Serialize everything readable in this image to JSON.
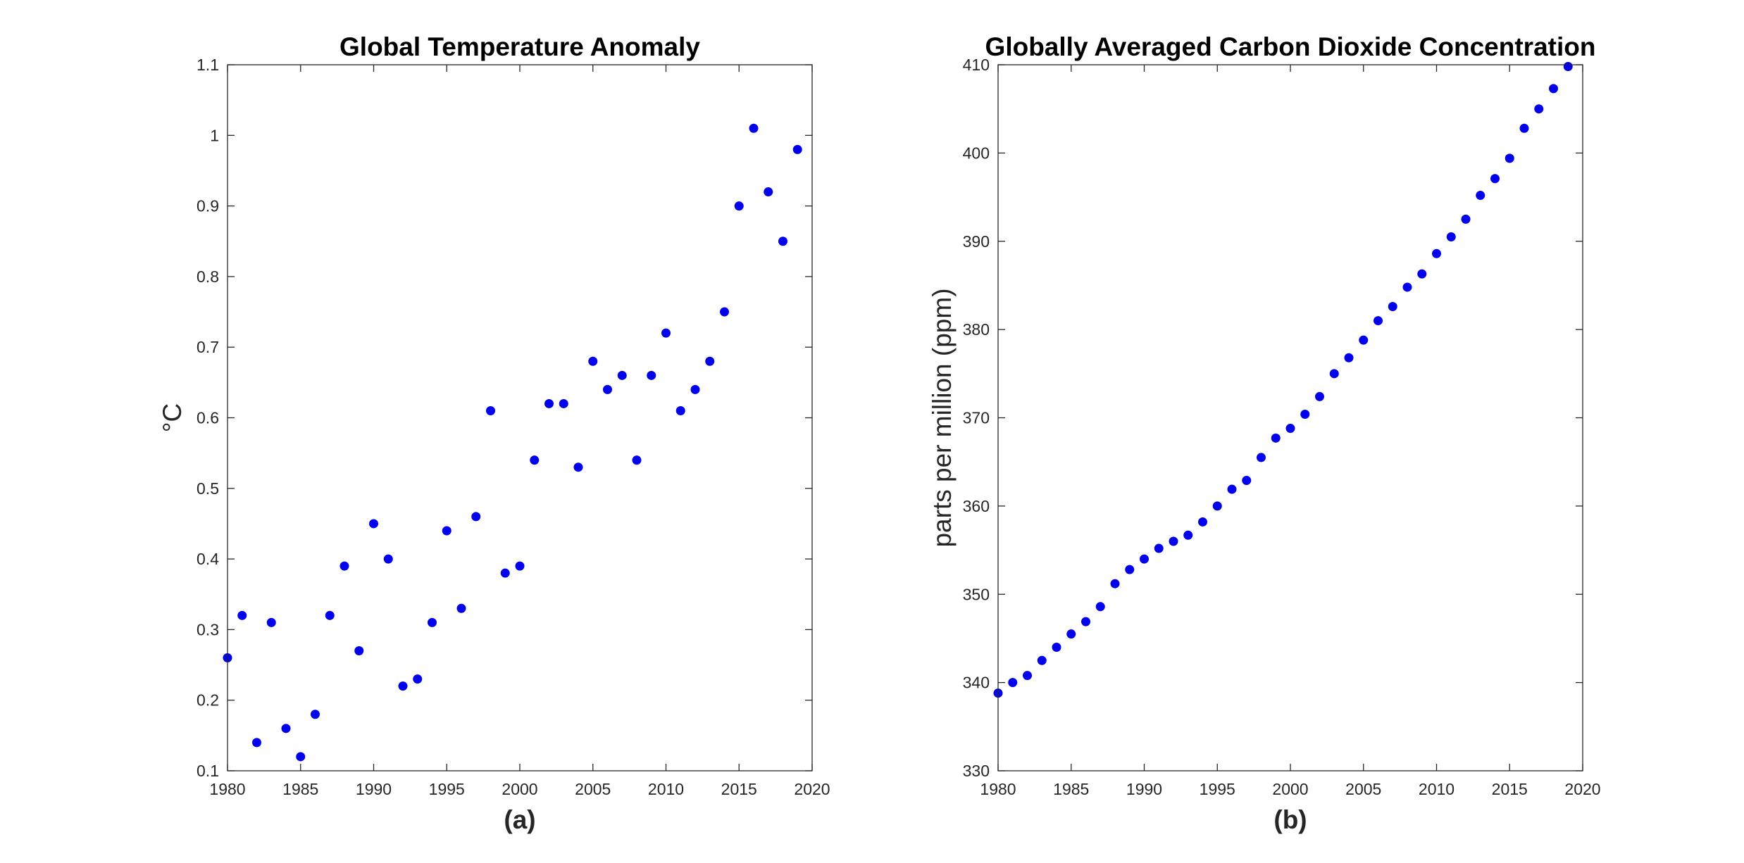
{
  "chart_data": [
    {
      "type": "scatter",
      "title": "Global Temperature Anomaly",
      "xlabel": "",
      "ylabel": "°C",
      "caption": "(a)",
      "xlim": [
        1980,
        2020
      ],
      "ylim": [
        0.1,
        1.1
      ],
      "xticks": [
        1980,
        1985,
        1990,
        1995,
        2000,
        2005,
        2010,
        2015,
        2020
      ],
      "yticks": [
        0.1,
        0.2,
        0.3,
        0.4,
        0.5,
        0.6,
        0.7,
        0.8,
        0.9,
        1,
        1.1
      ],
      "marker_color": "#0000ee",
      "grid": false,
      "x": [
        1980,
        1981,
        1982,
        1983,
        1984,
        1985,
        1986,
        1987,
        1988,
        1989,
        1990,
        1991,
        1992,
        1993,
        1994,
        1995,
        1996,
        1997,
        1998,
        1999,
        2000,
        2001,
        2002,
        2003,
        2004,
        2005,
        2006,
        2007,
        2008,
        2009,
        2010,
        2011,
        2012,
        2013,
        2014,
        2015,
        2016,
        2017,
        2018,
        2019
      ],
      "y": [
        0.26,
        0.32,
        0.14,
        0.31,
        0.16,
        0.12,
        0.18,
        0.32,
        0.39,
        0.27,
        0.45,
        0.4,
        0.22,
        0.23,
        0.31,
        0.44,
        0.33,
        0.46,
        0.61,
        0.38,
        0.39,
        0.54,
        0.62,
        0.62,
        0.53,
        0.68,
        0.64,
        0.66,
        0.54,
        0.66,
        0.72,
        0.61,
        0.64,
        0.68,
        0.75,
        0.9,
        1.01,
        0.92,
        0.85,
        0.98
      ]
    },
    {
      "type": "scatter",
      "title": "Globally Averaged Carbon Dioxide Concentration",
      "xlabel": "",
      "ylabel": "parts per million (ppm)",
      "caption": "(b)",
      "xlim": [
        1980,
        2020
      ],
      "ylim": [
        330,
        410
      ],
      "xticks": [
        1980,
        1985,
        1990,
        1995,
        2000,
        2005,
        2010,
        2015,
        2020
      ],
      "yticks": [
        330,
        340,
        350,
        360,
        370,
        380,
        390,
        400,
        410
      ],
      "marker_color": "#0000ee",
      "grid": false,
      "x": [
        1980,
        1981,
        1982,
        1983,
        1984,
        1985,
        1986,
        1987,
        1988,
        1989,
        1990,
        1991,
        1992,
        1993,
        1994,
        1995,
        1996,
        1997,
        1998,
        1999,
        2000,
        2001,
        2002,
        2003,
        2004,
        2005,
        2006,
        2007,
        2008,
        2009,
        2010,
        2011,
        2012,
        2013,
        2014,
        2015,
        2016,
        2017,
        2018,
        2019
      ],
      "y": [
        338.8,
        340.0,
        340.8,
        342.5,
        344.0,
        345.5,
        346.9,
        348.6,
        351.2,
        352.8,
        354.0,
        355.2,
        356.0,
        356.7,
        358.2,
        360.0,
        361.9,
        362.9,
        365.5,
        367.7,
        368.8,
        370.4,
        372.4,
        375.0,
        376.8,
        378.8,
        381.0,
        382.6,
        384.8,
        386.3,
        388.6,
        390.5,
        392.5,
        395.2,
        397.1,
        399.4,
        402.8,
        405.0,
        407.3,
        409.8
      ]
    }
  ]
}
